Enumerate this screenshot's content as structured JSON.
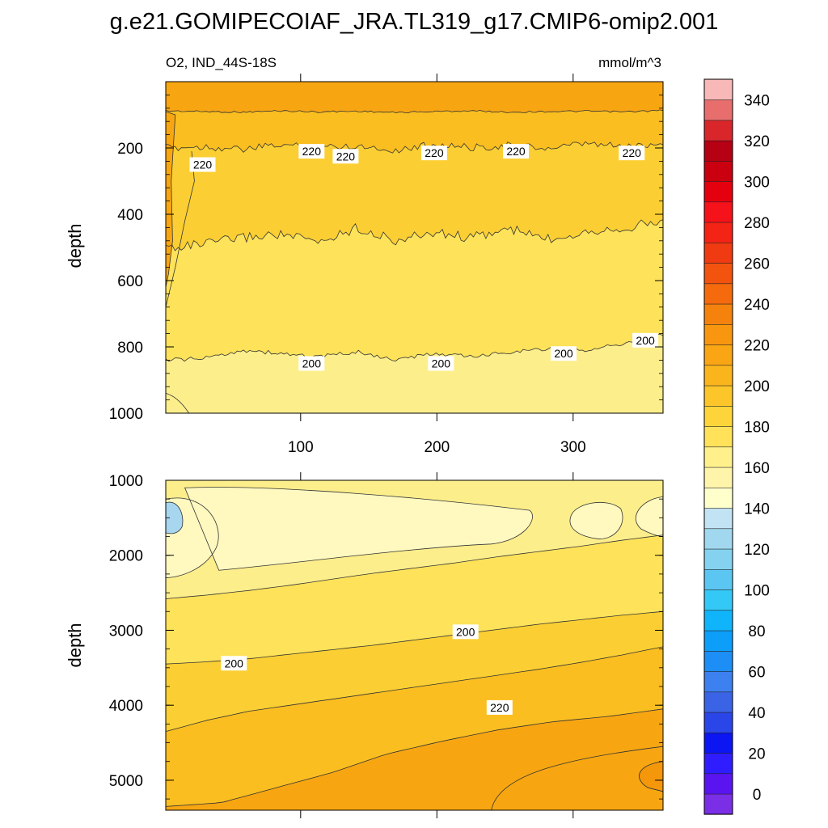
{
  "title": "g.e21.GOMIPECOIAF_JRA.TL319_g17.CMIP6-omip2.001",
  "chart_data": [
    {
      "type": "contour",
      "panel": "upper",
      "left_label": "O2, IND_44S-18S",
      "right_label": "mmol/m^3",
      "ylabel": "depth",
      "xlim": [
        1,
        366
      ],
      "ylim": [
        0,
        1000
      ],
      "y_inverted": true,
      "xticks": [
        100,
        200,
        300
      ],
      "xticklabels": [
        "100",
        "200",
        "300"
      ],
      "yticks": [
        200,
        400,
        600,
        800,
        1000
      ],
      "yticklabels": [
        "200",
        "400",
        "600",
        "800",
        "1000"
      ],
      "contours": [
        {
          "level": 230,
          "depths": [
            88,
            90,
            92,
            88,
            91,
            89,
            93,
            90,
            88,
            92,
            90,
            89,
            91,
            87
          ]
        },
        {
          "level": 220,
          "depths": [
            200,
            196,
            205,
            190,
            198,
            193,
            207,
            189,
            199,
            192,
            202,
            188,
            196,
            185
          ]
        },
        {
          "level": 210,
          "depths": [
            500,
            490,
            470,
            460,
            485,
            440,
            480,
            455,
            470,
            445,
            475,
            450,
            440,
            420
          ]
        },
        {
          "level": 200,
          "depths": [
            840,
            835,
            810,
            820,
            830,
            815,
            840,
            820,
            830,
            815,
            805,
            810,
            790,
            760
          ]
        }
      ],
      "contour_labels": [
        {
          "text": "220",
          "x": 28,
          "depth": 250
        },
        {
          "text": "220",
          "x": 108,
          "depth": 210
        },
        {
          "text": "220",
          "x": 133,
          "depth": 225
        },
        {
          "text": "220",
          "x": 198,
          "depth": 215
        },
        {
          "text": "220",
          "x": 258,
          "depth": 210
        },
        {
          "text": "220",
          "x": 343,
          "depth": 215
        },
        {
          "text": "200",
          "x": 108,
          "depth": 850
        },
        {
          "text": "200",
          "x": 203,
          "depth": 850
        },
        {
          "text": "200",
          "x": 293,
          "depth": 820
        },
        {
          "text": "200",
          "x": 353,
          "depth": 780
        }
      ]
    },
    {
      "type": "contour",
      "panel": "lower",
      "ylabel": "depth",
      "xlim": [
        1,
        366
      ],
      "ylim": [
        1000,
        5400
      ],
      "y_inverted": true,
      "yticks": [
        1000,
        2000,
        3000,
        4000,
        5000
      ],
      "yticklabels": [
        "1000",
        "2000",
        "3000",
        "4000",
        "5000"
      ],
      "contours": [
        {
          "level": 190,
          "depths": [
            2580,
            2530,
            2470,
            2400,
            2320,
            2240,
            2170,
            2100,
            2020,
            1950,
            1880,
            1800,
            1730
          ]
        },
        {
          "level": 200,
          "depths": [
            3450,
            3420,
            3380,
            3320,
            3260,
            3200,
            3130,
            3060,
            2990,
            2920,
            2860,
            2800,
            2750
          ]
        },
        {
          "level": 210,
          "depths": [
            4350,
            4200,
            4080,
            4000,
            3920,
            3840,
            3760,
            3680,
            3600,
            3520,
            3430,
            3330,
            3220
          ]
        },
        {
          "level": 220,
          "depths": [
            5350,
            5300,
            5100,
            4900,
            4650,
            4480,
            4330,
            4220,
            4150,
            4050
          ]
        }
      ],
      "contour_labels": [
        {
          "text": "200",
          "x": 51,
          "depth": 3440
        },
        {
          "text": "200",
          "x": 221,
          "depth": 3020
        },
        {
          "text": "220",
          "x": 246,
          "depth": 4030
        }
      ]
    }
  ],
  "colorbar": {
    "labels": [
      "0",
      "20",
      "40",
      "60",
      "80",
      "100",
      "120",
      "140",
      "160",
      "180",
      "200",
      "220",
      "240",
      "260",
      "280",
      "300",
      "320",
      "340"
    ],
    "colors": [
      "#7a2ee6",
      "#5a14f0",
      "#2f1cff",
      "#0b16f2",
      "#2a46e8",
      "#3a63e6",
      "#3d80f0",
      "#1c8ef5",
      "#0c9ef8",
      "#10b4fa",
      "#33c8f6",
      "#5cc6f3",
      "#84d2f0",
      "#a1d8ef",
      "#c2e3f3",
      "#ffffcc",
      "#fff5aa",
      "#fff08c",
      "#ffe15a",
      "#fdd53a",
      "#fcc52a",
      "#fbb51c",
      "#faa614",
      "#f8970f",
      "#f5820d",
      "#f46a0c",
      "#f2530f",
      "#f03a12",
      "#f32315",
      "#f5121a",
      "#e4000f",
      "#ca0010",
      "#b60014",
      "#d9262b",
      "#e86e6e",
      "#f8b8b8"
    ]
  },
  "fills": {
    "lt190": "#fff9c0",
    "b190_200": "#fdee8c",
    "b200_210": "#fde25a",
    "b210_220": "#fbcf33",
    "b220_230": "#fabe20",
    "b230_240": "#f7a612",
    "b240_250": "#f4970a",
    "low150": "#a8d6ef"
  }
}
